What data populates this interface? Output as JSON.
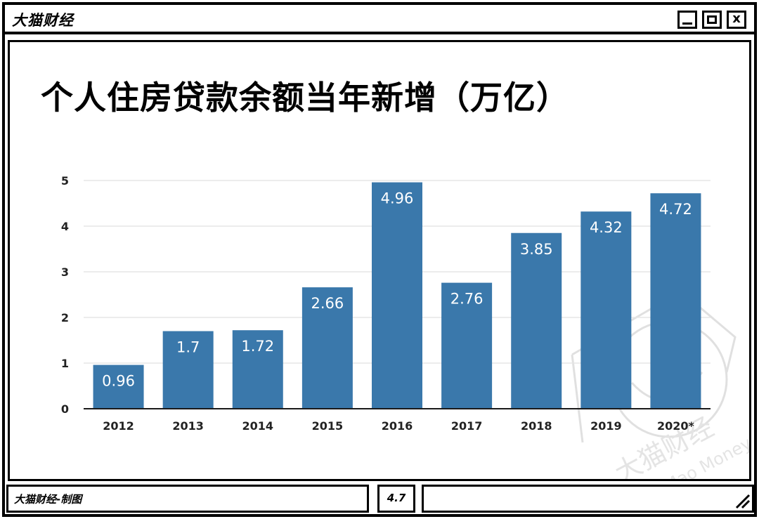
{
  "window": {
    "title": "大猫财经",
    "close_glyph": "x"
  },
  "statusbar": {
    "credit": "大猫财经-制图",
    "value": "4.7"
  },
  "watermark": {
    "brand_cn": "大猫财经",
    "brand_en": "Da Mao Money"
  },
  "colors": {
    "bar": "#3a78ab",
    "frame": "#000000",
    "grid": "#e6e6e6"
  },
  "chart_data": {
    "type": "bar",
    "title": "个人住房贷款余额当年新增（万亿）",
    "categories": [
      "2012",
      "2013",
      "2014",
      "2015",
      "2016",
      "2017",
      "2018",
      "2019",
      "2020*"
    ],
    "values": [
      0.96,
      1.7,
      1.72,
      2.66,
      4.96,
      2.76,
      3.85,
      4.32,
      4.72
    ],
    "value_labels": [
      "0.96",
      "1.7",
      "1.72",
      "2.66",
      "4.96",
      "2.76",
      "3.85",
      "4.32",
      "4.72"
    ],
    "y_ticks": [
      "0",
      "1",
      "2",
      "3",
      "4",
      "5"
    ],
    "ylim": [
      0,
      5
    ],
    "grid": true,
    "legend": "none",
    "xlabel": "",
    "ylabel": ""
  }
}
